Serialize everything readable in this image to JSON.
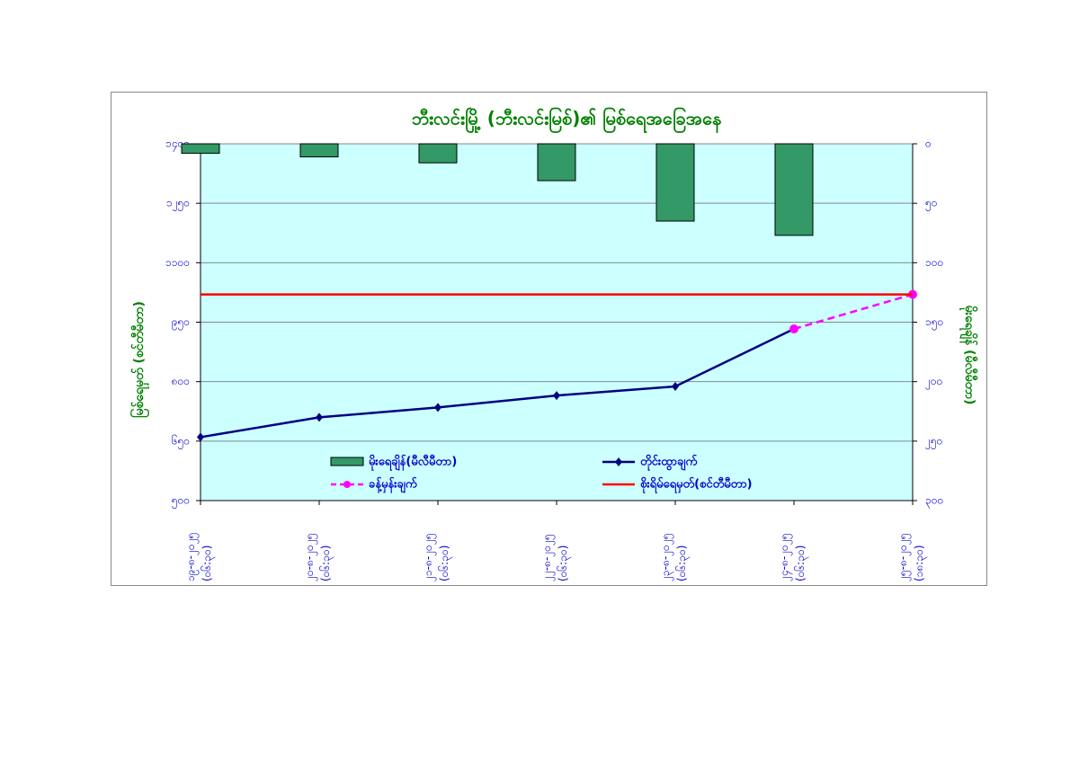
{
  "chart_data": {
    "type": "combo",
    "title": "ဘီးလင်းမြို့ (ဘီးလင်းမြစ်)၏ မြစ်ရေအခြေအနေ",
    "y_label": "မြစ်ရေမှတ် (စင်တီမီတာ)",
    "y2_label": "မိုးရေချိန် (မီလီမီတာ)",
    "categories": [
      "၁၉-၈-၂၀၂၅ (၀၆:၃၀)",
      "၂၀-၈-၂၀၂၅ (၀၆:၃၀)",
      "၂၁-၈-၂၀၂၅ (၀၆:၃၀)",
      "၂၂-၈-၂၀၂၅ (၀၆:၃၀)",
      "၂၃-၈-၂၀၂၅ (၀၆:၃၀)",
      "၂၄-၈-၂၀၂၅ (၀၆:၃၀)",
      "၂၅-၈-၂၀၂၅ (၁၈:၃၀)"
    ],
    "series": [
      {
        "name": "မိုးရေချိန်(မီလီမီတာ)",
        "type": "bar",
        "axis": "y2",
        "color": "#339966",
        "values": [
          8,
          11,
          16,
          31,
          65,
          77,
          null
        ]
      },
      {
        "name": "တိုင်းထွာချက်",
        "type": "line",
        "marker": "diamond",
        "color": "#000080",
        "values": [
          660,
          710,
          735,
          765,
          788,
          933,
          null
        ]
      },
      {
        "name": "ခန့်မှန်းချက်",
        "type": "line",
        "dashed": true,
        "marker": "circle",
        "color": "#ff00ff",
        "values": [
          null,
          null,
          null,
          null,
          null,
          933,
          1020
        ]
      },
      {
        "name": "စိုးရိမ်ရေမှတ်(စင်တီမီတာ)",
        "type": "line",
        "color": "#ff0000",
        "values": [
          1020,
          1020,
          1020,
          1020,
          1020,
          1020,
          1020
        ]
      }
    ],
    "ylim": [
      500,
      1400
    ],
    "yticks": [
      {
        "value": 500,
        "label": "၅၀၀"
      },
      {
        "value": 650,
        "label": "၆၅၀"
      },
      {
        "value": 800,
        "label": "၈၀၀"
      },
      {
        "value": 950,
        "label": "၉၅၀"
      },
      {
        "value": 1100,
        "label": "၁၁၀၀"
      },
      {
        "value": 1250,
        "label": "၁၂၅၀"
      },
      {
        "value": 1400,
        "label": "၁၄၀၀"
      }
    ],
    "y2lim": [
      300,
      0
    ],
    "y2ticks": [
      {
        "value": 0,
        "label": "၀"
      },
      {
        "value": 50,
        "label": "၅၀"
      },
      {
        "value": 100,
        "label": "၁၀၀"
      },
      {
        "value": 150,
        "label": "၁၅၀"
      },
      {
        "value": 200,
        "label": "၂၀၀"
      },
      {
        "value": 250,
        "label": "၂၅၀"
      },
      {
        "value": 300,
        "label": "၃၀၀"
      }
    ],
    "grid": true
  }
}
